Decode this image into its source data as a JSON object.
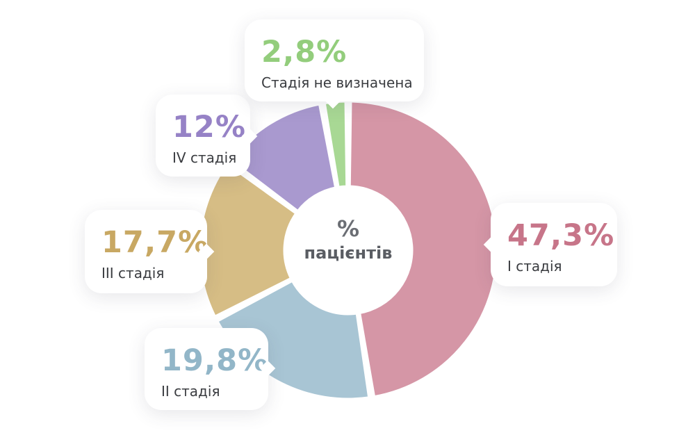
{
  "chart_data": {
    "type": "pie",
    "variant": "donut",
    "center_label": {
      "line1": "%",
      "line2": "пацієнтів"
    },
    "slices": [
      {
        "label": "I стадія",
        "value": 47.3,
        "value_label": "47,3%",
        "color": "#d596a6",
        "label_color": "#c77589"
      },
      {
        "label": "II стадія",
        "value": 19.8,
        "value_label": "19,8%",
        "color": "#a8c5d4",
        "label_color": "#92b6c8"
      },
      {
        "label": "III стадія",
        "value": 17.7,
        "value_label": "17,7%",
        "color": "#d6bd85",
        "label_color": "#c8a863"
      },
      {
        "label": "IV стадія",
        "value": 12,
        "value_label": "12%",
        "color": "#a999cf",
        "label_color": "#9682c6"
      },
      {
        "label": "Стадія не визначена",
        "value": 2.8,
        "value_label": "2,8%",
        "color": "#a8d894",
        "label_color": "#93cd7c"
      }
    ]
  }
}
